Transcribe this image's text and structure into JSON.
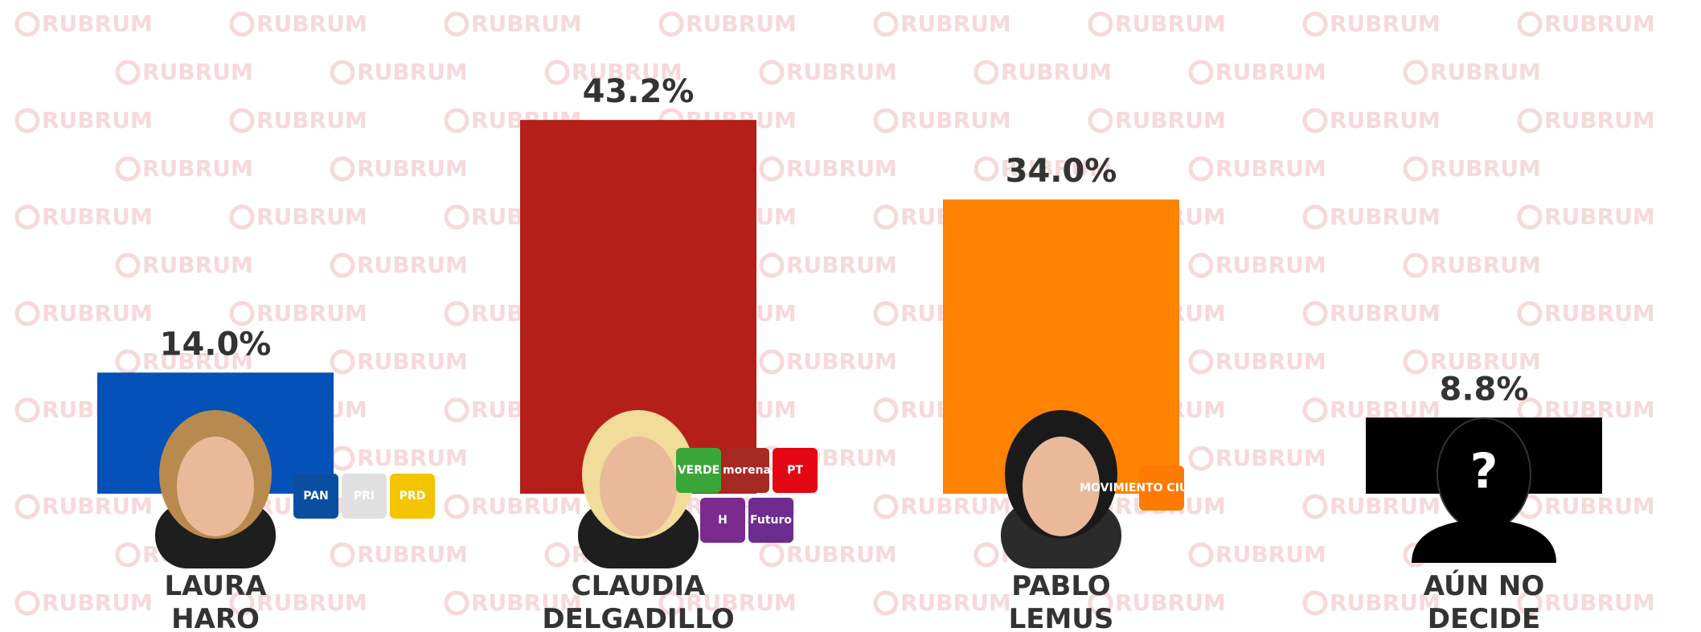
{
  "chart_data": {
    "type": "bar",
    "watermark": "RUBRUM",
    "categories": [
      "LAURA HARO",
      "CLAUDIA DELGADILLO",
      "PABLO LEMUS",
      "AÚN NO DECIDE"
    ],
    "values": [
      14.0,
      43.2,
      34.0,
      8.8
    ],
    "value_labels": [
      "14.0%",
      "43.2%",
      "34.0%",
      "8.8%"
    ],
    "colors": [
      "#0451b8",
      "#b41f19",
      "#ff8200",
      "#000000"
    ],
    "party_logos": [
      [
        "PAN",
        "PRI",
        "PRD"
      ],
      [
        "VERDE",
        "morena",
        "PT",
        "H",
        "Futuro"
      ],
      [
        "MOVIMIENTO CIUDADANO"
      ],
      []
    ],
    "unknown_mark": "?",
    "ylim": [
      0,
      50
    ]
  }
}
